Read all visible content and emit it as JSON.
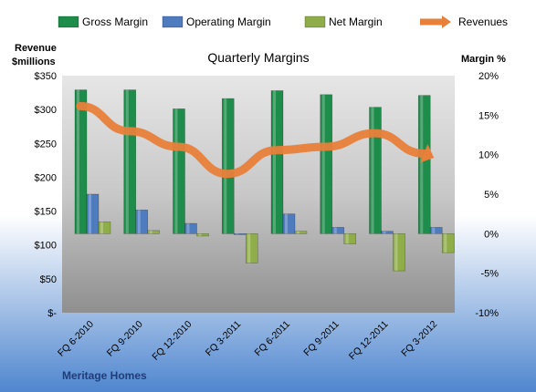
{
  "chart_data": {
    "type": "bar",
    "title": "Quarterly Margins",
    "caption": "Meritage Homes",
    "left_axis": {
      "label_line1": "Revenue",
      "label_line2": "$millions",
      "ylim": [
        0,
        350
      ],
      "ticks": [
        "$-",
        "$50",
        "$100",
        "$150",
        "$200",
        "$250",
        "$300",
        "$350"
      ]
    },
    "right_axis": {
      "label": "Margin %",
      "ylim": [
        -10,
        20
      ],
      "ticks": [
        "-10%",
        "-5%",
        "0%",
        "5%",
        "10%",
        "15%",
        "20%"
      ]
    },
    "categories": [
      "FQ 6-2010",
      "FQ 9-2010",
      "FQ 12-2010",
      "FQ 3-2011",
      "FQ 6-2011",
      "FQ 9-2011",
      "FQ 12-2011",
      "FQ 3-2012"
    ],
    "series": [
      {
        "name": "Gross Margin",
        "axis": "right",
        "color": "#1e8c4a",
        "values": [
          18.2,
          18.2,
          15.8,
          17.1,
          18.1,
          17.6,
          16.0,
          17.5
        ]
      },
      {
        "name": "Operating Margin",
        "axis": "right",
        "color": "#4f7bbf",
        "values": [
          5.0,
          3.0,
          1.3,
          0.0,
          2.5,
          0.8,
          0.3,
          0.8
        ]
      },
      {
        "name": "Net Margin",
        "axis": "right",
        "color": "#8fae4a",
        "values": [
          1.5,
          0.4,
          -0.3,
          -3.7,
          0.3,
          -1.3,
          -4.7,
          -2.4
        ]
      },
      {
        "name": "Revenues",
        "axis": "left",
        "type": "line",
        "color": "#e8803a",
        "values": [
          305,
          268,
          245,
          205,
          240,
          245,
          265,
          235
        ]
      }
    ],
    "legend_position": "top",
    "grid": false
  }
}
